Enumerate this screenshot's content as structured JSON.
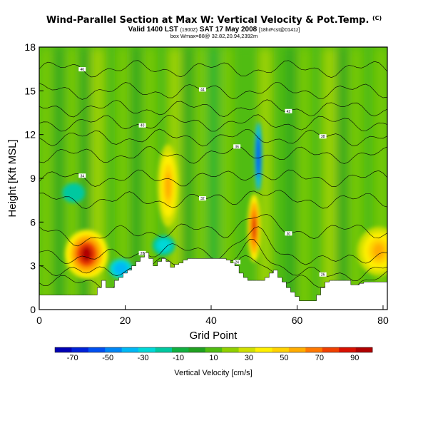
{
  "chart_data": {
    "type": "heatmap",
    "title": "Wind-Parallel Section at Max W: Vertical Velocity & Pot.Temp.",
    "title_mark": "(C)",
    "subtitle_main": "Valid 1400 LST",
    "subtitle_utc": "(1900Z)",
    "subtitle_date": "SAT 17 May 2008",
    "subtitle_fcst": "[18hrFcst@0141z]",
    "subtitle2": "box Wmax=88@ 32.82,20.94,2392m",
    "xlabel": "Grid Point",
    "ylabel": "Height [Kft MSL]",
    "xlim": [
      0,
      81
    ],
    "ylim": [
      0,
      18
    ],
    "x_ticks": [
      0,
      20,
      40,
      60,
      80
    ],
    "y_ticks": [
      0,
      3,
      6,
      9,
      12,
      15,
      18
    ],
    "colorbar": {
      "label": "Vertical Velocity [cm/s]",
      "ticks": [
        -70,
        -50,
        -30,
        -10,
        10,
        30,
        50,
        70,
        90
      ],
      "min": -80,
      "max": 100,
      "colors": [
        "#0000b4",
        "#0022d8",
        "#0050f0",
        "#0086f5",
        "#00b8f5",
        "#00d8d8",
        "#00c8a0",
        "#10b040",
        "#20a020",
        "#50bc10",
        "#90d000",
        "#d0e000",
        "#fff000",
        "#ffd200",
        "#ffac00",
        "#ff7800",
        "#f04000",
        "#d81000",
        "#b00000"
      ]
    },
    "terrain_x": [
      0,
      1,
      2,
      3,
      4,
      5,
      6,
      7,
      8,
      9,
      10,
      11,
      12,
      13,
      14,
      15,
      16,
      17,
      18,
      19,
      20,
      21,
      22,
      23,
      24,
      25,
      26,
      27,
      28,
      29,
      30,
      31,
      32,
      33,
      34,
      35,
      36,
      37,
      38,
      39,
      40,
      41,
      42,
      43,
      44,
      45,
      46,
      47,
      48,
      49,
      50,
      51,
      52,
      53,
      54,
      55,
      56,
      57,
      58,
      59,
      60,
      61,
      62,
      63,
      64,
      65,
      66,
      67,
      68,
      69,
      70,
      71,
      72,
      73,
      74,
      75,
      76,
      77,
      78,
      79,
      80,
      81
    ],
    "terrain_height": [
      1.0,
      1.0,
      1.0,
      1.0,
      1.0,
      1.0,
      1.0,
      1.0,
      1.0,
      1.0,
      1.0,
      1.0,
      1.0,
      1.0,
      1.5,
      2.0,
      1.5,
      1.5,
      2.0,
      2.2,
      2.5,
      2.7,
      3.0,
      3.3,
      3.6,
      3.9,
      3.5,
      3.0,
      3.3,
      3.5,
      3.3,
      2.9,
      3.1,
      3.2,
      3.4,
      3.5,
      3.5,
      3.5,
      3.5,
      3.5,
      3.5,
      3.5,
      3.5,
      3.5,
      3.4,
      3.2,
      3.0,
      2.5,
      2.2,
      2.0,
      2.0,
      2.0,
      2.0,
      2.2,
      2.5,
      2.7,
      2.2,
      1.9,
      1.5,
      1.2,
      0.9,
      0.6,
      0.6,
      0.6,
      0.6,
      1.0,
      1.5,
      1.9,
      2.0,
      2.0,
      2.0,
      2.0,
      2.0,
      1.7,
      1.7,
      1.8,
      1.9,
      1.9,
      1.9,
      1.9,
      1.9,
      1.9
    ],
    "updrafts": [
      {
        "x": 11,
        "z": 3.8,
        "value": 95
      },
      {
        "x": 30,
        "z": 8.5,
        "value": 55
      },
      {
        "x": 50,
        "z": 5.6,
        "value": 90
      },
      {
        "x": 79,
        "z": 4.0,
        "value": 60
      }
    ],
    "downdrafts": [
      {
        "x": 51,
        "z": 10.5,
        "value": -60
      },
      {
        "x": 19,
        "z": 2.8,
        "value": -35
      },
      {
        "x": 29,
        "z": 4.4,
        "value": -25
      },
      {
        "x": 8,
        "z": 8.0,
        "value": -20
      }
    ],
    "isentropes": [
      {
        "label": "46",
        "z": 16.5
      },
      {
        "label": "44",
        "z": 15.0
      },
      {
        "label": "42",
        "z": 13.8
      },
      {
        "label": "40",
        "z": 12.8
      },
      {
        "label": "38",
        "z": 11.8
      },
      {
        "label": "36",
        "z": 10.6
      },
      {
        "label": "34",
        "z": 9.0
      },
      {
        "label": "32",
        "z": 7.5
      },
      {
        "label": "30",
        "z": 5.4
      },
      {
        "label": "28",
        "z": 4.0
      },
      {
        "label": "26",
        "z": 3.0
      },
      {
        "label": "24",
        "z": 2.2
      }
    ]
  }
}
